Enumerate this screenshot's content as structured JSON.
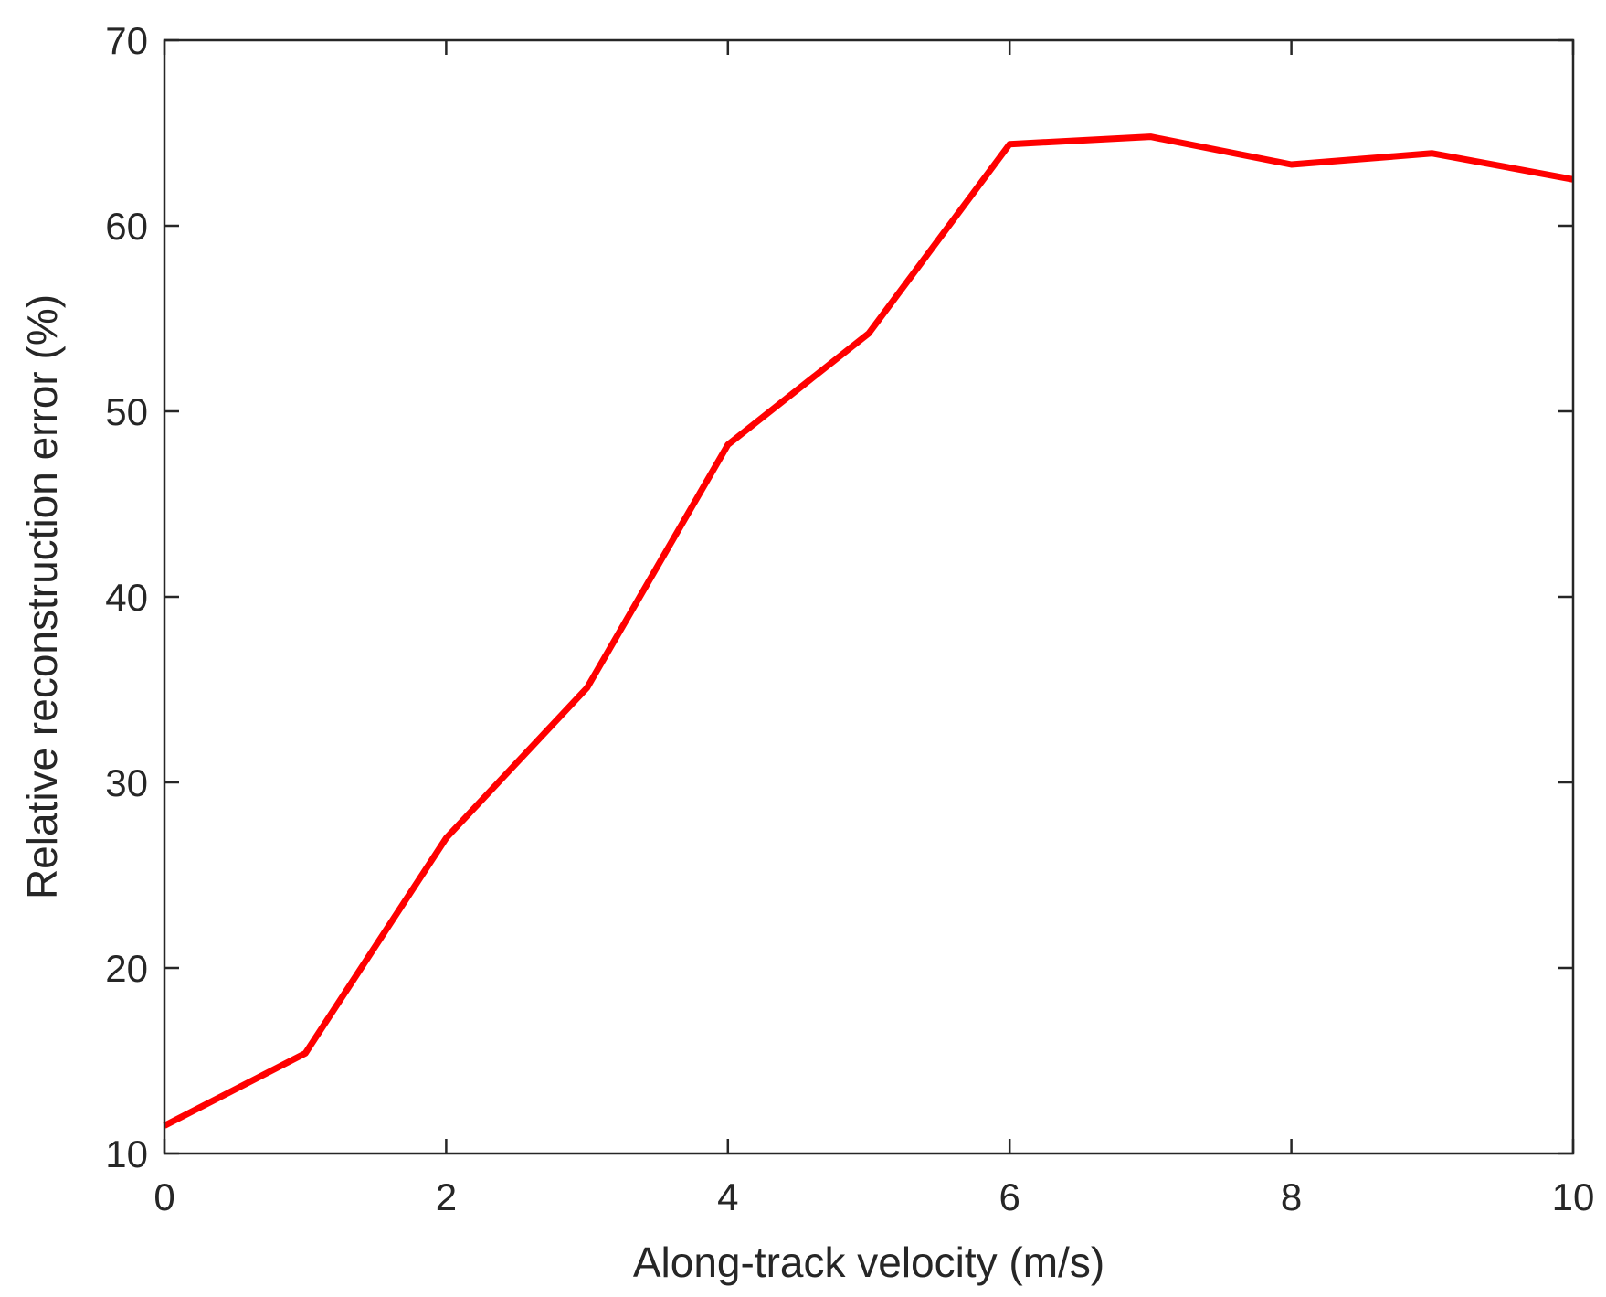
{
  "chart_data": {
    "type": "line",
    "title": "",
    "xlabel": "Along-track velocity (m/s)",
    "ylabel": "Relative reconstruction error (%)",
    "xlim": [
      0,
      10
    ],
    "ylim": [
      10,
      70
    ],
    "xticks": [
      0,
      2,
      4,
      6,
      8,
      10
    ],
    "yticks": [
      10,
      20,
      30,
      40,
      50,
      60,
      70
    ],
    "grid": false,
    "legend": "none",
    "series": [
      {
        "color": "#ff0000",
        "x": [
          0,
          1,
          2,
          3,
          4,
          5,
          6,
          7,
          8,
          9,
          10
        ],
        "y": [
          11.5,
          15.4,
          27.0,
          35.1,
          48.2,
          54.2,
          64.4,
          64.8,
          63.3,
          63.9,
          62.5
        ]
      }
    ]
  }
}
